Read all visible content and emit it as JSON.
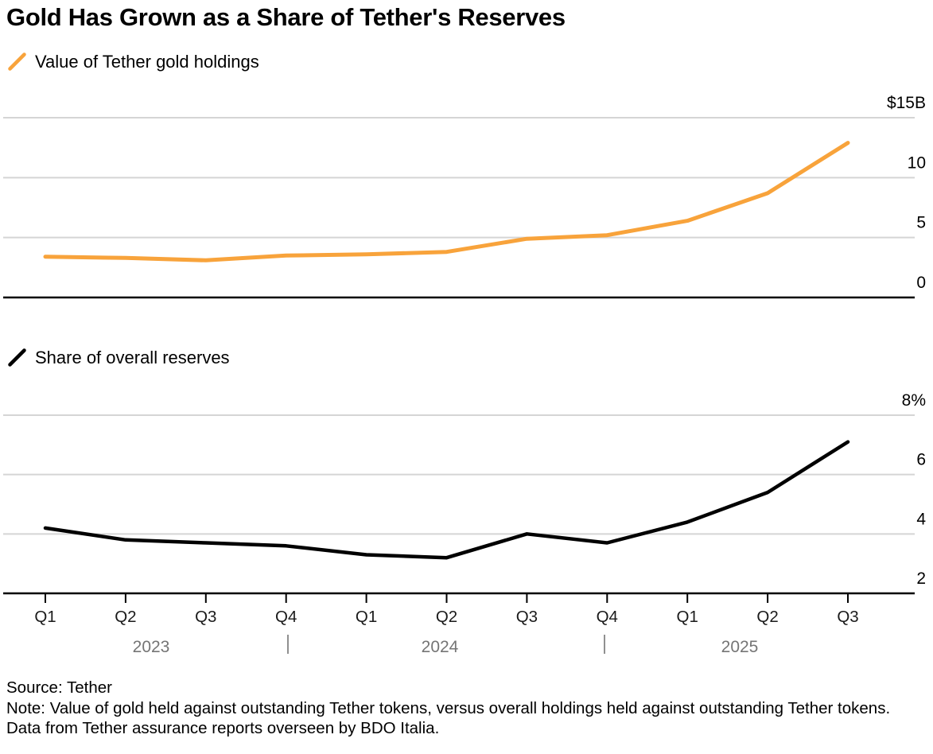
{
  "header": {
    "title": "Gold Has Grown as a Share of Tether's Reserves"
  },
  "colors": {
    "gold_line": "#F8A33B",
    "share_line": "#000000",
    "gridline": "#D5D5D5",
    "axis_line": "#000000",
    "tick_label": "#000000",
    "quarter_label": "#1A1A1A",
    "year_label": "#757575"
  },
  "chart_data": [
    {
      "type": "line",
      "legend": "Value of Tether gold holdings",
      "series_color": "#F8A33B",
      "unit": "US$ billions",
      "x": [
        "Q1 2023",
        "Q2 2023",
        "Q3 2023",
        "Q4 2023",
        "Q1 2024",
        "Q2 2024",
        "Q3 2024",
        "Q4 2024",
        "Q1 2025",
        "Q2 2025",
        "Q3 2025"
      ],
      "values": [
        3.4,
        3.3,
        3.1,
        3.5,
        3.6,
        3.8,
        4.9,
        5.2,
        6.4,
        8.7,
        12.9
      ],
      "ylim": [
        0,
        15
      ],
      "yticks": [
        0,
        5,
        10,
        15
      ],
      "ytick_labels": [
        "0",
        "5",
        "10",
        "$15B"
      ],
      "grid": true,
      "legend_position": "top-left",
      "ytick_position": "right"
    },
    {
      "type": "line",
      "legend": "Share of overall reserves",
      "series_color": "#000000",
      "unit": "percent",
      "x": [
        "Q1 2023",
        "Q2 2023",
        "Q3 2023",
        "Q4 2023",
        "Q1 2024",
        "Q2 2024",
        "Q3 2024",
        "Q4 2024",
        "Q1 2025",
        "Q2 2025",
        "Q3 2025"
      ],
      "values": [
        4.2,
        3.8,
        3.7,
        3.6,
        3.3,
        3.2,
        4.0,
        3.7,
        4.4,
        5.4,
        7.1
      ],
      "ylim": [
        2,
        8
      ],
      "yticks": [
        2,
        4,
        6,
        8
      ],
      "ytick_labels": [
        "2",
        "4",
        "6",
        "8%"
      ],
      "grid": true,
      "legend_position": "top-left",
      "ytick_position": "right"
    }
  ],
  "x_axis": {
    "quarter_labels": [
      "Q1",
      "Q2",
      "Q3",
      "Q4",
      "Q1",
      "Q2",
      "Q3",
      "Q4",
      "Q1",
      "Q2",
      "Q3"
    ],
    "year_labels": [
      "2023",
      "2024",
      "2025"
    ],
    "year_separator": "|"
  },
  "footer": {
    "source": "Source: Tether",
    "note": "Note: Value of gold held against outstanding Tether tokens, versus overall holdings held against outstanding Tether tokens. Data from Tether assurance reports overseen by BDO Italia."
  }
}
